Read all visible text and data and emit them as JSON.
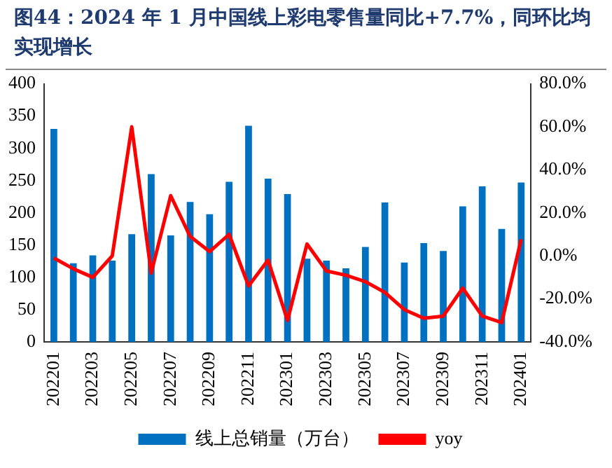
{
  "chart_data": {
    "type": "bar",
    "title": "图44：2024 年 1 月中国线上彩电零售量同比+7.7%，同环比均实现增长",
    "categories": [
      "202201",
      null,
      "202203",
      null,
      "202205",
      null,
      "202207",
      null,
      "202209",
      null,
      "202211",
      null,
      "202301",
      null,
      "202303",
      null,
      "202305",
      null,
      "202307",
      null,
      "202309",
      null,
      "202311",
      null,
      "202401"
    ],
    "series": [
      {
        "name": "线上总销量（万台）",
        "color": "#0070c0",
        "values": [
          330,
          122,
          134,
          126,
          167,
          260,
          165,
          217,
          198,
          248,
          335,
          253,
          229,
          129,
          126,
          114,
          147,
          216,
          123,
          153,
          141,
          210,
          241,
          175,
          247
        ]
      },
      {
        "name": "yoy",
        "type": "line",
        "axis": "y2",
        "color": "#ff0000",
        "values": [
          -1,
          -6,
          -10,
          0,
          60,
          -8,
          28,
          9,
          2,
          10,
          -14,
          -2,
          -30,
          5.5,
          -7,
          -9,
          -12,
          -17,
          -25,
          -29,
          -28,
          -15,
          -28,
          -31,
          7.7
        ]
      }
    ],
    "ylim": [
      0,
      400
    ],
    "yticks": [
      0,
      50,
      100,
      150,
      200,
      250,
      300,
      350,
      400
    ],
    "y2lim": [
      -40,
      80
    ],
    "y2ticks": [
      {
        "value": -40,
        "label": "-40.0%"
      },
      {
        "value": -20,
        "label": "-20.0%"
      },
      {
        "value": 0,
        "label": "0.0%"
      },
      {
        "value": 20,
        "label": "20.0%"
      },
      {
        "value": 40,
        "label": "40.0%"
      },
      {
        "value": 60,
        "label": "60.0%"
      },
      {
        "value": 80,
        "label": "80.0%"
      }
    ],
    "grid": false,
    "legend": "bottom",
    "marker": "none",
    "line_style": "solid"
  }
}
